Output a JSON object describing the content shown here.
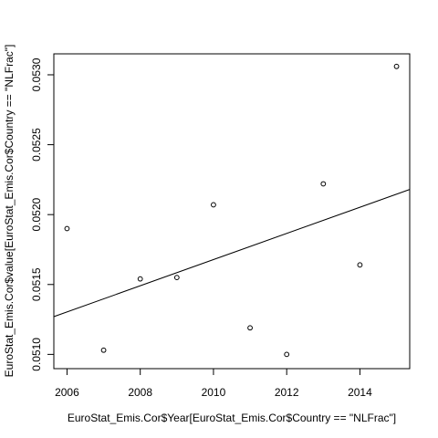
{
  "chart_data": {
    "type": "scatter",
    "title": "",
    "xlabel": "EuroStat_Emis.Cor$Year[EuroStat_Emis.Cor$Country == \"NLFrac\"]",
    "ylabel": "EuroStat_Emis.Cor$value[EuroStat_Emis.Cor$Country == \"NLFrac\"]",
    "xlim": [
      2005.64,
      2015.36
    ],
    "ylim": [
      0.050898,
      0.05315
    ],
    "x_ticks": [
      "2006",
      "2008",
      "2010",
      "2012",
      "2014"
    ],
    "y_ticks": [
      "0.0510",
      "0.0515",
      "0.0520",
      "0.0525",
      "0.0530"
    ],
    "x_tick_values": [
      2006,
      2008,
      2010,
      2012,
      2014
    ],
    "y_tick_values": [
      0.051,
      0.0515,
      0.052,
      0.0525,
      0.053
    ],
    "grid": false,
    "points": [
      {
        "x": 2006,
        "y": 0.0519
      },
      {
        "x": 2007,
        "y": 0.05103
      },
      {
        "x": 2008,
        "y": 0.05154
      },
      {
        "x": 2009,
        "y": 0.05155
      },
      {
        "x": 2010,
        "y": 0.05207
      },
      {
        "x": 2011,
        "y": 0.05119
      },
      {
        "x": 2012,
        "y": 0.051
      },
      {
        "x": 2013,
        "y": 0.05222
      },
      {
        "x": 2014,
        "y": 0.05164
      },
      {
        "x": 2015,
        "y": 0.05306
      }
    ],
    "fit_line": {
      "x": [
        2005.64,
        2015.36
      ],
      "y": [
        0.05127,
        0.05218
      ]
    }
  }
}
